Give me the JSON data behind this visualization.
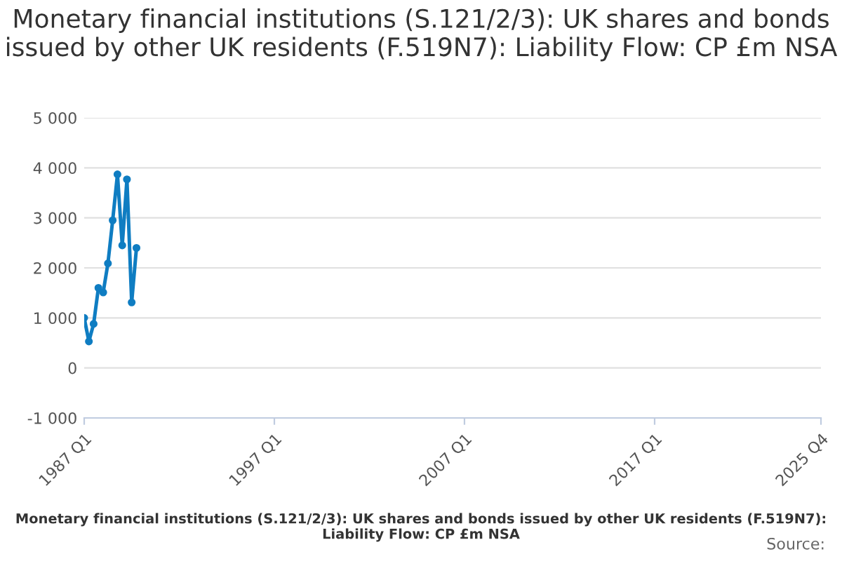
{
  "chart_data": {
    "type": "line",
    "title": "Monetary financial institutions (S.121/2/3): UK shares and bonds issued by other UK residents (F.519N7): Liability Flow: CP £m NSA",
    "x": [
      "1987-01",
      "1987-04",
      "1987-07",
      "1987-10",
      "1988-01",
      "1988-04",
      "1988-07",
      "1988-10",
      "1989-01",
      "1989-04",
      "1989-07",
      "1989-10"
    ],
    "series": [
      {
        "color": "#0f7dc2",
        "values": [
          1000,
          530,
          880,
          1600,
          1510,
          2090,
          2950,
          3870,
          2450,
          3770,
          1310,
          2400
        ]
      }
    ],
    "xlim": [
      "1987-01",
      "2025-10"
    ],
    "xticks": [
      {
        "value": "1987-01",
        "label": "1987 Q1"
      },
      {
        "value": "1997-01",
        "label": "1997 Q1"
      },
      {
        "value": "2007-01",
        "label": "2007 Q1"
      },
      {
        "value": "2017-01",
        "label": "2017 Q1"
      },
      {
        "value": "2025-10",
        "label": "2025 Q4"
      }
    ],
    "ylim": [
      -1000,
      5000
    ],
    "yticks": [
      {
        "value": -1000,
        "label": "-1 000"
      },
      {
        "value": 0,
        "label": "0"
      },
      {
        "value": 1000,
        "label": "1 000"
      },
      {
        "value": 2000,
        "label": "2 000"
      },
      {
        "value": 3000,
        "label": "3 000"
      },
      {
        "value": 4000,
        "label": "4 000"
      },
      {
        "value": 5000,
        "label": "5 000"
      }
    ],
    "grid": "y",
    "marker": "circle",
    "line_style": "solid",
    "annotations": [
      "Monetary financial institutions (S.121/2/3): UK shares and bonds issued by other UK residents (F.519N7): Liability Flow: CP £m NSA",
      "Source:"
    ]
  }
}
